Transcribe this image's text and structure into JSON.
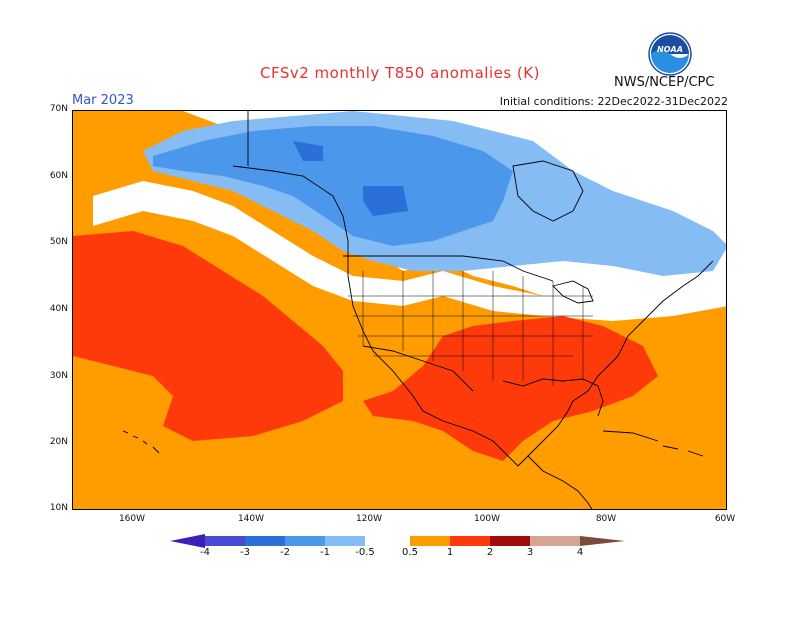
{
  "title": "CFSv2 monthly T850 anomalies (K)",
  "month": "Mar 2023",
  "agency": "NWS/NCEP/CPC",
  "initial_conditions": "Initial conditions: 22Dec2022-31Dec2022",
  "logo_text": "NOAA",
  "map": {
    "lat_labels": [
      "70N",
      "60N",
      "50N",
      "40N",
      "30N",
      "20N",
      "10N"
    ],
    "lon_labels": [
      "160W",
      "140W",
      "120W",
      "100W",
      "80W",
      "60W"
    ]
  },
  "colorbar": {
    "labels": [
      "-4",
      "-3",
      "-2",
      "-1",
      "-0.5",
      "0.5",
      "1",
      "2",
      "3",
      "4"
    ],
    "colors": [
      "#3b1fb8",
      "#4a4ad6",
      "#2c6fd8",
      "#4a97ec",
      "#86bcf4",
      "#ffffff",
      "#ff9d00",
      "#ff3a0a",
      "#a30a0a",
      "#d6a592",
      "#7a4a3a"
    ]
  }
}
